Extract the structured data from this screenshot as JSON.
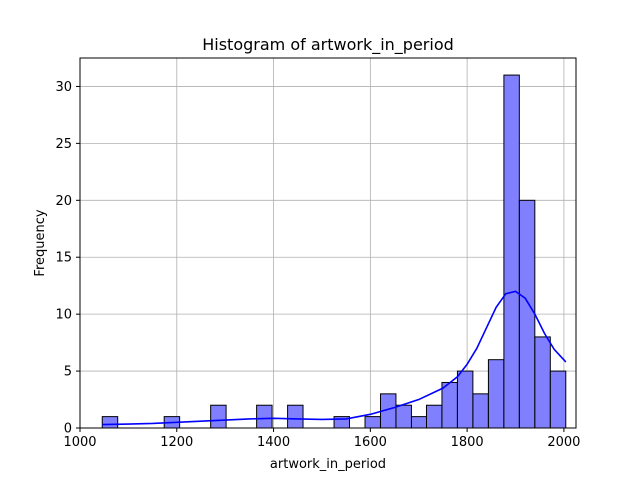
{
  "chart_data": {
    "type": "bar",
    "title": "Histogram of artwork_in_period",
    "xlabel": "artwork_in_period",
    "ylabel": "Frequency",
    "xlim": [
      1000,
      2025
    ],
    "ylim": [
      0,
      32.5
    ],
    "xticks": [
      1000,
      1200,
      1400,
      1600,
      1800,
      2000
    ],
    "yticks": [
      0,
      5,
      10,
      15,
      20,
      25,
      30
    ],
    "grid": true,
    "bar_color": "#8080ff",
    "bar_edge_color": "#000000",
    "kde_color": "#0000ff",
    "bin_width": 31.9,
    "bins": [
      {
        "start": 1046,
        "count": 1
      },
      {
        "start": 1078,
        "count": 0
      },
      {
        "start": 1110,
        "count": 0
      },
      {
        "start": 1142,
        "count": 0
      },
      {
        "start": 1174,
        "count": 1
      },
      {
        "start": 1206,
        "count": 0
      },
      {
        "start": 1238,
        "count": 0
      },
      {
        "start": 1270,
        "count": 2
      },
      {
        "start": 1301,
        "count": 0
      },
      {
        "start": 1333,
        "count": 0
      },
      {
        "start": 1365,
        "count": 2
      },
      {
        "start": 1397,
        "count": 0
      },
      {
        "start": 1429,
        "count": 2
      },
      {
        "start": 1461,
        "count": 0
      },
      {
        "start": 1493,
        "count": 0
      },
      {
        "start": 1525,
        "count": 1
      },
      {
        "start": 1557,
        "count": 0
      },
      {
        "start": 1589,
        "count": 1
      },
      {
        "start": 1621,
        "count": 3
      },
      {
        "start": 1653,
        "count": 2
      },
      {
        "start": 1685,
        "count": 1
      },
      {
        "start": 1716,
        "count": 2
      },
      {
        "start": 1748,
        "count": 4
      },
      {
        "start": 1780,
        "count": 5
      },
      {
        "start": 1812,
        "count": 3
      },
      {
        "start": 1844,
        "count": 6
      },
      {
        "start": 1876,
        "count": 31
      },
      {
        "start": 1908,
        "count": 20
      },
      {
        "start": 1940,
        "count": 8
      },
      {
        "start": 1972,
        "count": 5
      }
    ],
    "kde": {
      "x": [
        1046,
        1100,
        1150,
        1200,
        1250,
        1300,
        1350,
        1400,
        1450,
        1500,
        1550,
        1600,
        1650,
        1700,
        1750,
        1780,
        1800,
        1820,
        1840,
        1860,
        1880,
        1900,
        1920,
        1940,
        1960,
        1980,
        2004
      ],
      "y": [
        0.3,
        0.35,
        0.4,
        0.5,
        0.6,
        0.7,
        0.8,
        0.85,
        0.8,
        0.75,
        0.8,
        1.2,
        1.8,
        2.5,
        3.5,
        4.5,
        5.6,
        7.0,
        8.8,
        10.6,
        11.8,
        12.0,
        11.4,
        10.0,
        8.3,
        6.9,
        5.8
      ]
    }
  }
}
